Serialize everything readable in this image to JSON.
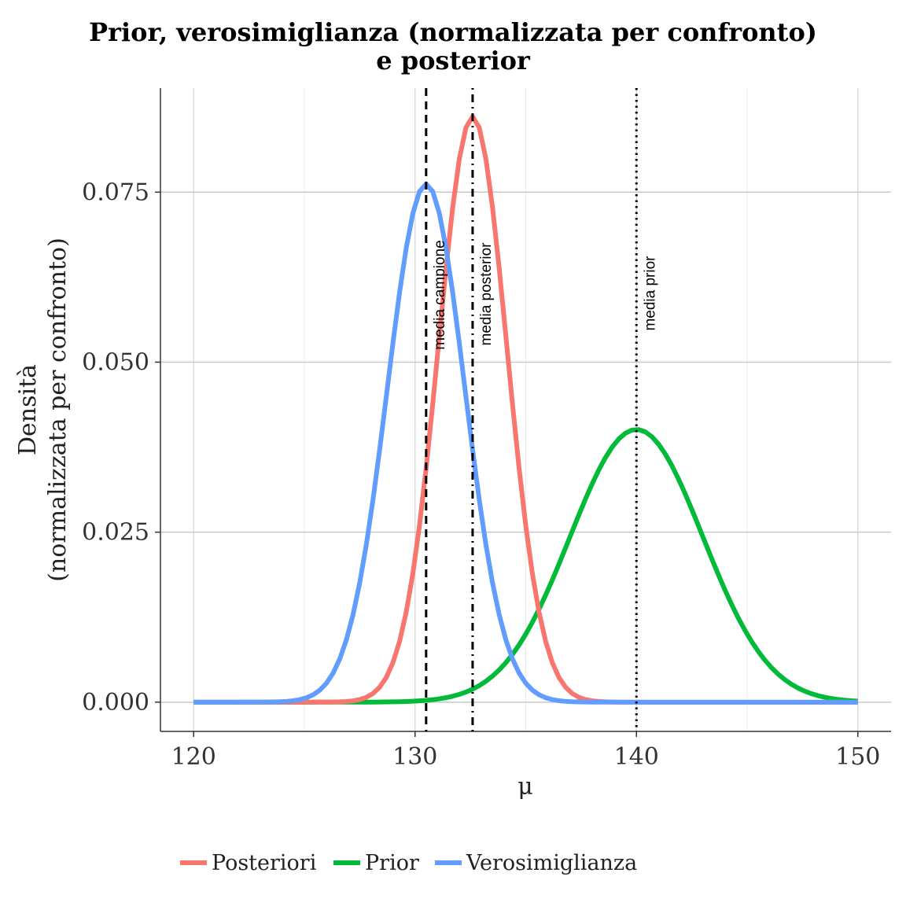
{
  "chart_data": {
    "type": "line",
    "title_lines": [
      "Prior, verosimiglianza (normalizzata per confronto)",
      "e posterior"
    ],
    "xlabel": "μ",
    "ylabel_lines": [
      "Densità",
      "(normalizzata per confronto)"
    ],
    "xlim": [
      118.5,
      151.5
    ],
    "ylim": [
      -0.0043,
      0.0903
    ],
    "x_ticks": [
      120,
      130,
      140,
      150
    ],
    "x_tick_labels": [
      "120",
      "130",
      "140",
      "150"
    ],
    "y_ticks": [
      0.0,
      0.025,
      0.05,
      0.075
    ],
    "y_tick_labels": [
      "0.000",
      "0.025",
      "0.050",
      "0.075"
    ],
    "grid": true,
    "legend_position": "bottom",
    "series": [
      {
        "name": "Posteriori",
        "color": "#F8766D",
        "mean": 132.6,
        "peak": 0.0861,
        "sd": 1.55,
        "x_range": [
          120,
          150
        ]
      },
      {
        "name": "Prior",
        "color": "#00BA38",
        "mean": 140.0,
        "peak": 0.0401,
        "sd": 3.0,
        "x_range": [
          120,
          150
        ]
      },
      {
        "name": "Verosimiglianza",
        "color": "#619CFF",
        "mean": 130.5,
        "peak": 0.0762,
        "sd": 1.75,
        "x_range": [
          120,
          150
        ]
      }
    ],
    "vlines": [
      {
        "x": 130.5,
        "style": "dashed",
        "label": "media campione"
      },
      {
        "x": 132.6,
        "style": "dotdash",
        "label": "media posterior"
      },
      {
        "x": 140.0,
        "style": "dotted",
        "label": "media prior"
      }
    ]
  }
}
